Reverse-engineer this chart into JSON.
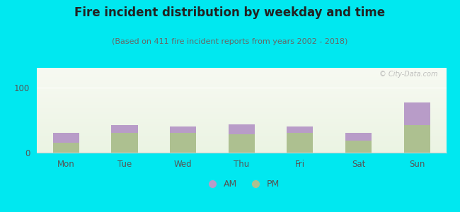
{
  "title": "Fire incident distribution by weekday and time",
  "subtitle": "(Based on 411 fire incident reports from years 2002 - 2018)",
  "categories": [
    "Mon",
    "Tue",
    "Wed",
    "Thu",
    "Fri",
    "Sat",
    "Sun"
  ],
  "pm_values": [
    15,
    30,
    30,
    28,
    30,
    18,
    42
  ],
  "am_values": [
    15,
    12,
    10,
    15,
    10,
    12,
    35
  ],
  "am_color": "#b89cc8",
  "pm_color": "#adc090",
  "background_outer": "#00e8f0",
  "ylim": [
    0,
    130
  ],
  "yticks": [
    0,
    100
  ],
  "bar_width": 0.45,
  "watermark": "© City-Data.com",
  "title_fontsize": 12,
  "subtitle_fontsize": 8,
  "tick_fontsize": 8.5,
  "legend_fontsize": 9
}
